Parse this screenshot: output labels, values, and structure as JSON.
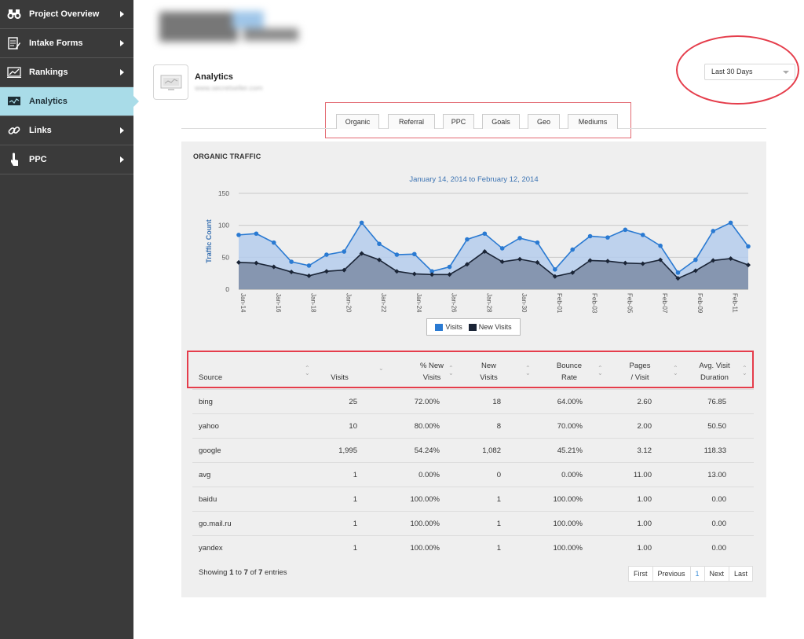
{
  "sidebar": {
    "items": [
      {
        "label": "Project Overview",
        "icon": "binoculars-icon"
      },
      {
        "label": "Intake Forms",
        "icon": "form-icon"
      },
      {
        "label": "Rankings",
        "icon": "rankings-icon"
      },
      {
        "label": "Analytics",
        "icon": "analytics-icon",
        "active": true
      },
      {
        "label": "Links",
        "icon": "link-icon"
      },
      {
        "label": "PPC",
        "icon": "click-icon"
      }
    ]
  },
  "header": {
    "title": "Analytics",
    "subtitle": "www.secretseller.com"
  },
  "date_range": {
    "selected": "Last 30 Days"
  },
  "tabs": [
    "Organic",
    "Referral",
    "PPC",
    "Goals",
    "Geo",
    "Mediums"
  ],
  "panel": {
    "title": "ORGANIC TRAFFIC"
  },
  "chart_data": {
    "type": "area",
    "title": "January 14, 2014 to February 12, 2014",
    "ylabel": "Traffic Count",
    "ylim": [
      0,
      150
    ],
    "yticks": [
      0,
      50,
      100,
      150
    ],
    "x": [
      "Jan-14",
      "Jan-15",
      "Jan-16",
      "Jan-17",
      "Jan-18",
      "Jan-19",
      "Jan-20",
      "Jan-21",
      "Jan-22",
      "Jan-23",
      "Jan-24",
      "Jan-25",
      "Jan-26",
      "Jan-27",
      "Jan-28",
      "Jan-29",
      "Jan-30",
      "Jan-31",
      "Feb-01",
      "Feb-02",
      "Feb-03",
      "Feb-04",
      "Feb-05",
      "Feb-06",
      "Feb-07",
      "Feb-08",
      "Feb-09",
      "Feb-10",
      "Feb-11",
      "Feb-12"
    ],
    "xtick_labels": [
      "Jan-14",
      "Jan-16",
      "Jan-18",
      "Jan-20",
      "Jan-22",
      "Jan-24",
      "Jan-26",
      "Jan-28",
      "Jan-30",
      "Feb-01",
      "Feb-03",
      "Feb-05",
      "Feb-07",
      "Feb-09",
      "Feb-11"
    ],
    "series": [
      {
        "name": "Visits",
        "color": "#2a7ad2",
        "fill": "#b5cdec",
        "values": [
          85,
          87,
          73,
          43,
          37,
          54,
          59,
          104,
          71,
          54,
          55,
          28,
          35,
          78,
          87,
          64,
          80,
          73,
          31,
          62,
          83,
          81,
          93,
          85,
          68,
          26,
          46,
          91,
          104,
          67
        ]
      },
      {
        "name": "New Visits",
        "color": "#1a2436",
        "fill": "#7f8fa8",
        "values": [
          42,
          41,
          35,
          27,
          21,
          28,
          30,
          56,
          46,
          28,
          24,
          23,
          23,
          39,
          59,
          43,
          47,
          42,
          20,
          26,
          45,
          44,
          41,
          40,
          46,
          17,
          29,
          45,
          48,
          38
        ]
      }
    ],
    "grid": true,
    "legend": "bottom-center"
  },
  "table": {
    "columns": [
      {
        "l1": "",
        "l2": "Source"
      },
      {
        "l1": "",
        "l2": "Visits"
      },
      {
        "l1": "% New",
        "l2": "Visits"
      },
      {
        "l1": "New",
        "l2": "Visits"
      },
      {
        "l1": "Bounce",
        "l2": "Rate"
      },
      {
        "l1": "Pages",
        "l2": "/ Visit"
      },
      {
        "l1": "Avg. Visit",
        "l2": "Duration"
      }
    ],
    "rows": [
      [
        "bing",
        "25",
        "72.00%",
        "18",
        "64.00%",
        "2.60",
        "76.85"
      ],
      [
        "yahoo",
        "10",
        "80.00%",
        "8",
        "70.00%",
        "2.00",
        "50.50"
      ],
      [
        "google",
        "1,995",
        "54.24%",
        "1,082",
        "45.21%",
        "3.12",
        "118.33"
      ],
      [
        "avg",
        "1",
        "0.00%",
        "0",
        "0.00%",
        "11.00",
        "13.00"
      ],
      [
        "baidu",
        "1",
        "100.00%",
        "1",
        "100.00%",
        "1.00",
        "0.00"
      ],
      [
        "go.mail.ru",
        "1",
        "100.00%",
        "1",
        "100.00%",
        "1.00",
        "0.00"
      ],
      [
        "yandex",
        "1",
        "100.00%",
        "1",
        "100.00%",
        "1.00",
        "0.00"
      ]
    ]
  },
  "footer": {
    "info_prefix": "Showing ",
    "info_start": "1",
    "info_mid": " to ",
    "info_end": "7",
    "info_of": " of ",
    "info_total": "7",
    "info_suffix": " entries"
  },
  "pager": [
    "First",
    "Previous",
    "1",
    "Next",
    "Last"
  ]
}
